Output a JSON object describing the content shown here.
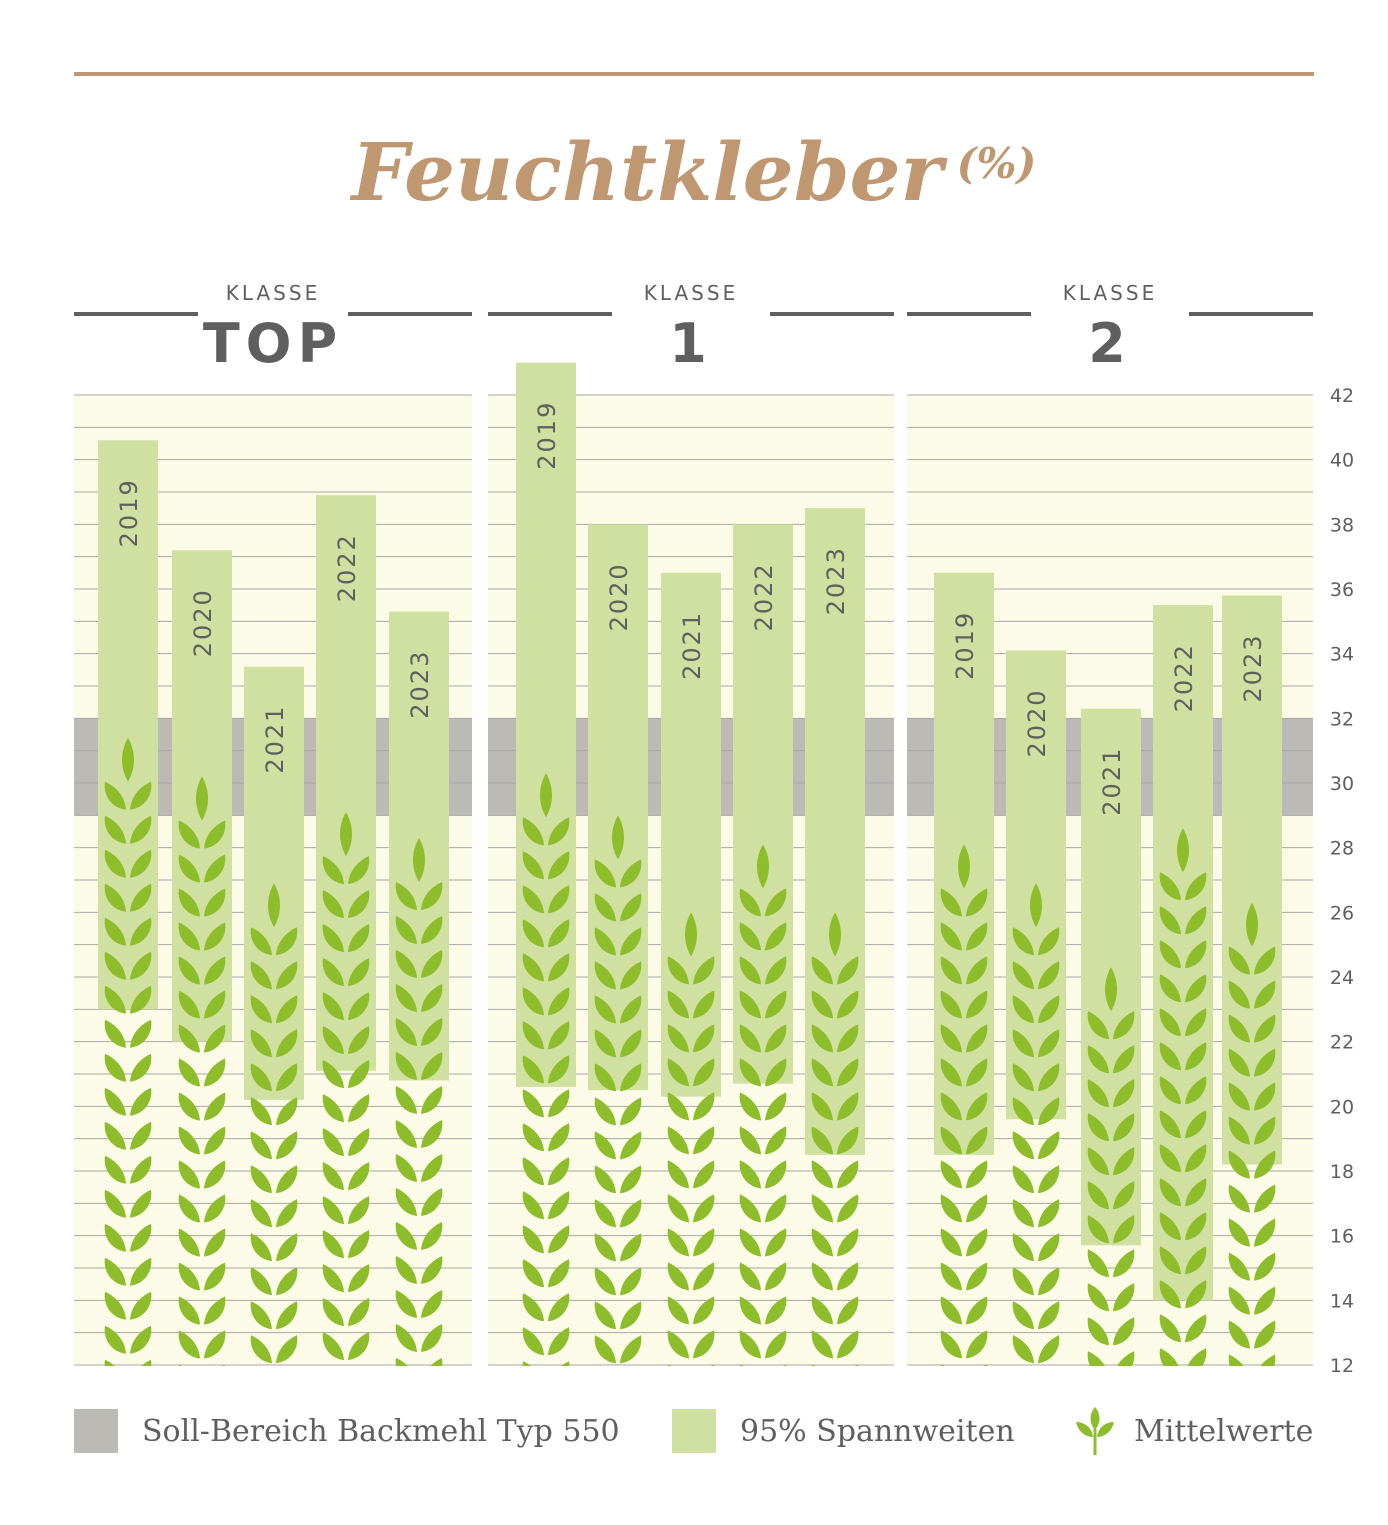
{
  "title": "Feuchtkleber",
  "title_unit": "(%)",
  "colors": {
    "accent_brown": "#bf9770",
    "panel_bg": "#fcfbe8",
    "grid": "#a7a7a7",
    "soll_band": "#bcbab4",
    "range_bar": "#cfe0a0",
    "wheat": "#8dbd2b",
    "text_gray": "#5f5f5f"
  },
  "legend": {
    "soll": "Soll-Bereich Backmehl Typ 550",
    "range": "95% Spannweiten",
    "mean": "Mittelwerte"
  },
  "chart_data": {
    "type": "bar",
    "ylim": [
      12,
      42
    ],
    "y_ticks": [
      12,
      14,
      16,
      18,
      20,
      22,
      24,
      26,
      28,
      30,
      32,
      34,
      36,
      38,
      40,
      42
    ],
    "y_axis_position": "right",
    "soll_bereich": [
      29,
      32
    ],
    "groups": [
      {
        "prefix": "KLASSE",
        "name": "TOP",
        "categories": [
          "2019",
          "2020",
          "2021",
          "2022",
          "2023"
        ],
        "range_low": [
          23.0,
          22.0,
          20.2,
          21.1,
          20.8
        ],
        "range_high": [
          40.6,
          37.2,
          33.6,
          38.9,
          35.3
        ],
        "mean": [
          31.4,
          30.2,
          26.9,
          29.1,
          28.3
        ]
      },
      {
        "prefix": "KLASSE",
        "name": "1",
        "categories": [
          "2019",
          "2020",
          "2021",
          "2022",
          "2023"
        ],
        "range_low": [
          20.6,
          20.5,
          20.3,
          20.7,
          18.5
        ],
        "range_high": [
          43.0,
          38.0,
          36.5,
          38.0,
          38.5
        ],
        "mean": [
          30.3,
          29.0,
          26.0,
          28.1,
          26.0
        ]
      },
      {
        "prefix": "KLASSE",
        "name": "2",
        "categories": [
          "2019",
          "2020",
          "2021",
          "2022",
          "2023"
        ],
        "range_low": [
          18.5,
          19.6,
          15.7,
          14.0,
          18.2
        ],
        "range_high": [
          36.5,
          34.1,
          32.3,
          35.5,
          35.8
        ],
        "mean": [
          28.1,
          26.9,
          24.3,
          28.6,
          26.3
        ]
      }
    ]
  }
}
